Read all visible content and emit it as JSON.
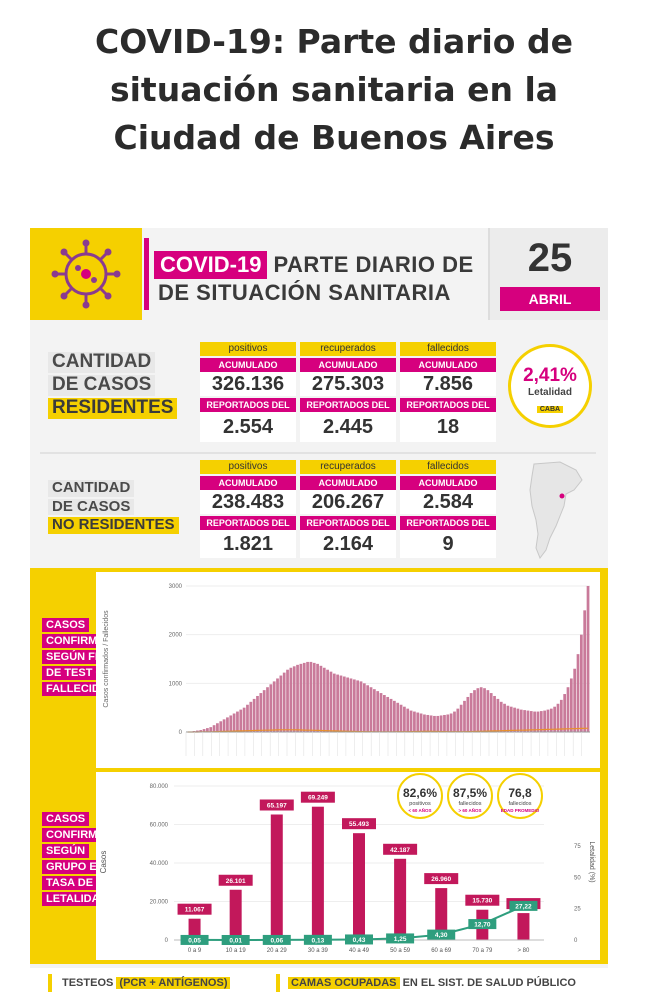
{
  "page": {
    "headline_l1": "COVID-19: Parte diario de",
    "headline_l2": "situación sanitaria en la",
    "headline_l3": "Ciudad de Buenos Aires"
  },
  "header": {
    "tag": "COVID-19",
    "line1": "PARTE DIARIO DE",
    "line2": "DE SITUACIÓN SANITARIA",
    "day": "25",
    "month": "ABRIL"
  },
  "residentes": {
    "label": [
      "CANTIDAD",
      "DE CASOS",
      "RESIDENTES"
    ],
    "columns": [
      {
        "caption": "positivos",
        "acc_label": "ACUMULADO",
        "acc": "326.136",
        "rep_label": "REPORTADOS DEL DÍA",
        "rep": "2.554"
      },
      {
        "caption": "recuperados",
        "acc_label": "ACUMULADO",
        "acc": "275.303",
        "rep_label": "REPORTADOS DEL DÍA",
        "rep": "2.445"
      },
      {
        "caption": "fallecidos",
        "acc_label": "ACUMULADO",
        "acc": "7.856",
        "rep_label": "REPORTADOS DEL DÍA",
        "rep": "18"
      }
    ],
    "letalidad": {
      "value": "2,41%",
      "label": "Letalidad",
      "tag": "CABA"
    }
  },
  "no_residentes": {
    "label": [
      "CANTIDAD",
      "DE CASOS",
      "NO RESIDENTES"
    ],
    "columns": [
      {
        "caption": "positivos",
        "acc_label": "ACUMULADO",
        "acc": "238.483",
        "rep_label": "REPORTADOS DEL DÍA",
        "rep": "1.821"
      },
      {
        "caption": "recuperados",
        "acc_label": "ACUMULADO",
        "acc": "206.267",
        "rep_label": "REPORTADOS DEL DÍA",
        "rep": "2.164"
      },
      {
        "caption": "fallecidos",
        "acc_label": "ACUMULADO",
        "acc": "2.584",
        "rep_label": "REPORTADOS DEL DÍA",
        "rep": "9"
      }
    ]
  },
  "chart1_label": [
    "CASOS",
    "CONFIRMADOS",
    "SEGÚN FECHA",
    "DE TEST +",
    "FALLECIDOS"
  ],
  "chart2_label": [
    "CASOS",
    "CONFIRMADOS",
    "SEGÚN",
    "GRUPO ETARIO +",
    "TASA DE",
    "LETALIDAD"
  ],
  "chart_data": [
    {
      "type": "bar",
      "ylabel": "Casos confirmados / Fallecidos",
      "yticks": [
        "0",
        "1000",
        "2000",
        "3000"
      ],
      "ylim": [
        0,
        3000
      ],
      "series": [
        {
          "name": "casos",
          "values": [
            5,
            10,
            20,
            30,
            40,
            60,
            80,
            100,
            140,
            180,
            220,
            260,
            300,
            340,
            380,
            420,
            460,
            500,
            560,
            620,
            680,
            740,
            800,
            860,
            920,
            980,
            1040,
            1100,
            1160,
            1220,
            1280,
            1320,
            1350,
            1380,
            1400,
            1420,
            1440,
            1440,
            1420,
            1400,
            1360,
            1320,
            1280,
            1240,
            1200,
            1180,
            1160,
            1140,
            1120,
            1100,
            1080,
            1060,
            1040,
            1000,
            960,
            920,
            880,
            840,
            800,
            760,
            720,
            680,
            640,
            600,
            560,
            520,
            480,
            440,
            420,
            400,
            380,
            360,
            350,
            340,
            330,
            330,
            340,
            350,
            360,
            380,
            420,
            480,
            560,
            640,
            720,
            800,
            860,
            900,
            920,
            900,
            860,
            800,
            740,
            680,
            620,
            580,
            540,
            520,
            500,
            480,
            460,
            450,
            440,
            430,
            420,
            420,
            430,
            440,
            460,
            480,
            520,
            580,
            660,
            780,
            920,
            1100,
            1300,
            1600,
            2000,
            2500,
            3000
          ]
        },
        {
          "name": "fallecidos",
          "values": [
            0,
            0,
            1,
            1,
            2,
            3,
            4,
            5,
            6,
            8,
            10,
            12,
            14,
            16,
            18,
            20,
            22,
            24,
            26,
            28,
            30,
            32,
            34,
            36,
            38,
            40,
            42,
            44,
            45,
            46,
            46,
            46,
            45,
            44,
            42,
            40,
            38,
            36,
            34,
            32,
            30,
            28,
            26,
            24,
            22,
            20,
            18,
            16,
            14,
            12,
            10,
            9,
            8,
            7,
            6,
            6,
            5,
            5,
            5,
            5,
            5,
            5,
            5,
            6,
            6,
            6,
            7,
            8,
            9,
            10,
            11,
            12,
            12,
            12,
            11,
            10,
            9,
            8,
            7,
            6,
            6,
            6,
            6,
            7,
            8,
            9,
            10,
            12,
            14,
            16,
            18,
            20,
            22,
            24,
            26,
            28,
            30,
            32,
            34,
            36,
            38,
            40,
            42,
            44,
            46,
            48,
            50,
            52,
            54,
            56,
            58,
            60,
            62,
            64,
            66,
            68,
            70,
            72,
            74,
            76,
            78
          ]
        }
      ]
    },
    {
      "type": "bar",
      "categories": [
        "0 a 9",
        "10 a 19",
        "20 a 29",
        "30 a 39",
        "40 a 49",
        "50 a 59",
        "60 a 69",
        "70 a 79",
        "> 80"
      ],
      "values": [
        11067,
        26101,
        65197,
        69249,
        55493,
        42187,
        26960,
        15730,
        13977
      ],
      "value_labels": [
        "11.067",
        "26.101",
        "65.197",
        "69.249",
        "55.493",
        "42.187",
        "26.960",
        "15.730",
        "13.977"
      ],
      "letalidad": [
        0.05,
        0.01,
        0.06,
        0.13,
        0.43,
        1.25,
        4.3,
        12.7,
        27.22
      ],
      "letalidad_labels": [
        "0,05",
        "0,01",
        "0,06",
        "0,13",
        "0,43",
        "1,25",
        "4,30",
        "12,70",
        "27,22"
      ],
      "ylabel": "Casos",
      "y2label": "Letalidad (%)",
      "yticks": [
        "0",
        "20.000",
        "40.000",
        "60.000",
        "80.000"
      ],
      "y2ticks": [
        "0",
        "25",
        "50",
        "75"
      ],
      "ylim": [
        0,
        80000
      ],
      "y2lim": [
        0,
        75
      ],
      "bubbles": [
        {
          "value": "82,6%",
          "label": "positivos",
          "sub": "< 60 AÑOS"
        },
        {
          "value": "87,5%",
          "label": "fallecidos",
          "sub": "> 60 AÑOS"
        },
        {
          "value": "76,8",
          "label": "fallecidos",
          "sub": "EDAD PROMEDIO"
        }
      ],
      "colors": {
        "bar": "#c2185b",
        "line": "#2e9e7e"
      }
    }
  ],
  "footer": {
    "f1_pre": "TESTEOS ",
    "f1_hl": "(PCR + ANTÍGENOS)",
    "f2_hl": "CAMAS OCUPADAS",
    "f2_post": " EN EL SIST. DE SALUD PÚBLICO"
  }
}
